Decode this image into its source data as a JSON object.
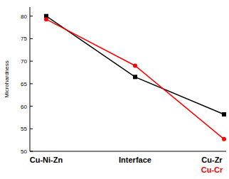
{
  "chart_data": {
    "type": "line",
    "y_label": "Microhardness",
    "categories": [
      "Cu-Ni-Zn",
      "Interface",
      "Cu-Zr"
    ],
    "series": [
      {
        "color": "#000000",
        "marker": "square",
        "values": [
          80,
          66.5,
          58.2
        ]
      },
      {
        "color": "#ff0000",
        "marker": "circle",
        "values": [
          79.3,
          69,
          52.7
        ]
      }
    ],
    "annotations": [
      {
        "text": "Cu-Cr",
        "color": "#ff0000"
      }
    ],
    "ylim": [
      50,
      82
    ],
    "yticks": [
      50,
      55,
      60,
      65,
      70,
      75,
      80
    ],
    "grid": false
  }
}
